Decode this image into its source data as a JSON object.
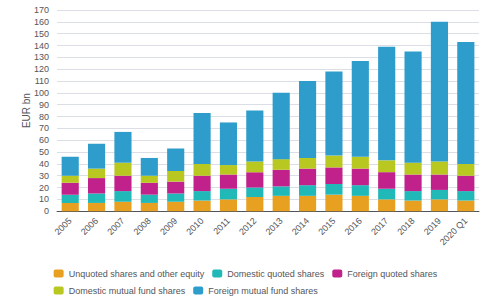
{
  "chart_data": {
    "type": "bar",
    "stacked": true,
    "ylabel": "EUR bn",
    "categories": [
      "2005",
      "2006",
      "2007",
      "2008",
      "2009",
      "2010",
      "2011",
      "2012",
      "2013",
      "2014",
      "2015",
      "2016",
      "2017",
      "2018",
      "2019",
      "2020 Q1"
    ],
    "series": [
      {
        "name": "Unquoted shares and other equity",
        "color": "#e8a020",
        "values": [
          7,
          7,
          8,
          7,
          8,
          9,
          10,
          12,
          13,
          13,
          14,
          13,
          10,
          9,
          10,
          9
        ]
      },
      {
        "name": "Domestic quoted shares",
        "color": "#21b8b8",
        "values": [
          7,
          8,
          9,
          7,
          7,
          8,
          9,
          8,
          8,
          9,
          9,
          9,
          9,
          8,
          8,
          8
        ]
      },
      {
        "name": "Foreign quoted shares",
        "color": "#c0218a",
        "values": [
          10,
          13,
          13,
          10,
          10,
          13,
          12,
          13,
          14,
          14,
          14,
          14,
          14,
          14,
          13,
          13
        ]
      },
      {
        "name": "Domestic mutual fund shares",
        "color": "#b8c821",
        "values": [
          6,
          8,
          11,
          6,
          9,
          10,
          8,
          9,
          9,
          9,
          10,
          10,
          10,
          10,
          11,
          10
        ]
      },
      {
        "name": "Foreign mutual fund shares",
        "color": "#2e9dcc",
        "values": [
          16,
          21,
          26,
          15,
          19,
          43,
          36,
          43,
          56,
          65,
          71,
          81,
          96,
          94,
          118,
          103
        ]
      }
    ],
    "ylim": [
      0,
      170
    ],
    "yticks": [
      0,
      10,
      20,
      30,
      40,
      50,
      60,
      70,
      80,
      90,
      100,
      110,
      120,
      130,
      140,
      150,
      160,
      170
    ],
    "grid": true,
    "legend": "bottom"
  }
}
